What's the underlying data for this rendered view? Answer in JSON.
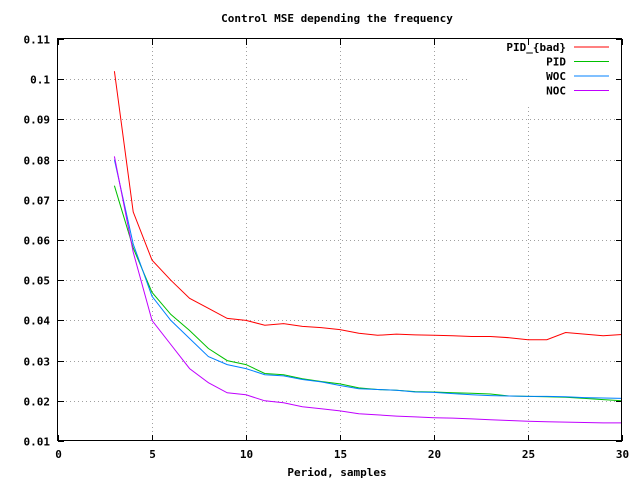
{
  "chart_data": {
    "type": "line",
    "title": "Control MSE depending the frequency",
    "xlabel": "Period, samples",
    "ylabel": "",
    "xlim": [
      0,
      30
    ],
    "ylim": [
      0.01,
      0.11
    ],
    "xticks": [
      "0",
      "5",
      "10",
      "15",
      "20",
      "25",
      "30"
    ],
    "yticks": [
      "0.01",
      "0.02",
      "0.03",
      "0.04",
      "0.05",
      "0.06",
      "0.07",
      "0.08",
      "0.09",
      "0.1",
      "0.11"
    ],
    "grid": true,
    "legend_position": "top-right",
    "x": [
      3,
      4,
      5,
      6,
      7,
      8,
      9,
      10,
      11,
      12,
      13,
      14,
      15,
      16,
      17,
      18,
      19,
      20,
      21,
      22,
      23,
      24,
      25,
      26,
      27,
      28,
      29,
      30
    ],
    "series": [
      {
        "name": "PID_{bad}",
        "color": "#ff0000",
        "values": [
          0.102,
          0.067,
          0.055,
          0.05,
          0.0455,
          0.043,
          0.0405,
          0.04,
          0.0388,
          0.0392,
          0.0385,
          0.0382,
          0.0377,
          0.0368,
          0.0363,
          0.0366,
          0.0364,
          0.0363,
          0.0362,
          0.036,
          0.036,
          0.0357,
          0.0352,
          0.0352,
          0.037,
          0.0366,
          0.0362,
          0.0365
        ]
      },
      {
        "name": "PID",
        "color": "#00c000",
        "values": [
          0.0735,
          0.058,
          0.047,
          0.0415,
          0.0375,
          0.033,
          0.03,
          0.029,
          0.0268,
          0.0265,
          0.0255,
          0.0248,
          0.0242,
          0.0232,
          0.0228,
          0.0226,
          0.0223,
          0.0222,
          0.022,
          0.0219,
          0.0217,
          0.0212,
          0.0211,
          0.021,
          0.0209,
          0.0206,
          0.0203,
          0.02
        ]
      },
      {
        "name": "WOC",
        "color": "#0080ff",
        "values": [
          0.08,
          0.059,
          0.046,
          0.04,
          0.0355,
          0.031,
          0.029,
          0.028,
          0.0265,
          0.0262,
          0.0253,
          0.0247,
          0.0238,
          0.023,
          0.0228,
          0.0226,
          0.0222,
          0.0221,
          0.0218,
          0.0215,
          0.0213,
          0.0212,
          0.0211,
          0.0211,
          0.021,
          0.0208,
          0.0207,
          0.0206
        ]
      },
      {
        "name": "NOC",
        "color": "#c000ff",
        "values": [
          0.0808,
          0.057,
          0.04,
          0.034,
          0.028,
          0.0245,
          0.022,
          0.0215,
          0.02,
          0.0195,
          0.0185,
          0.018,
          0.0175,
          0.0168,
          0.0165,
          0.0162,
          0.016,
          0.0158,
          0.0157,
          0.0155,
          0.0153,
          0.0151,
          0.0149,
          0.0148,
          0.0147,
          0.0146,
          0.0145,
          0.0145
        ]
      }
    ]
  }
}
